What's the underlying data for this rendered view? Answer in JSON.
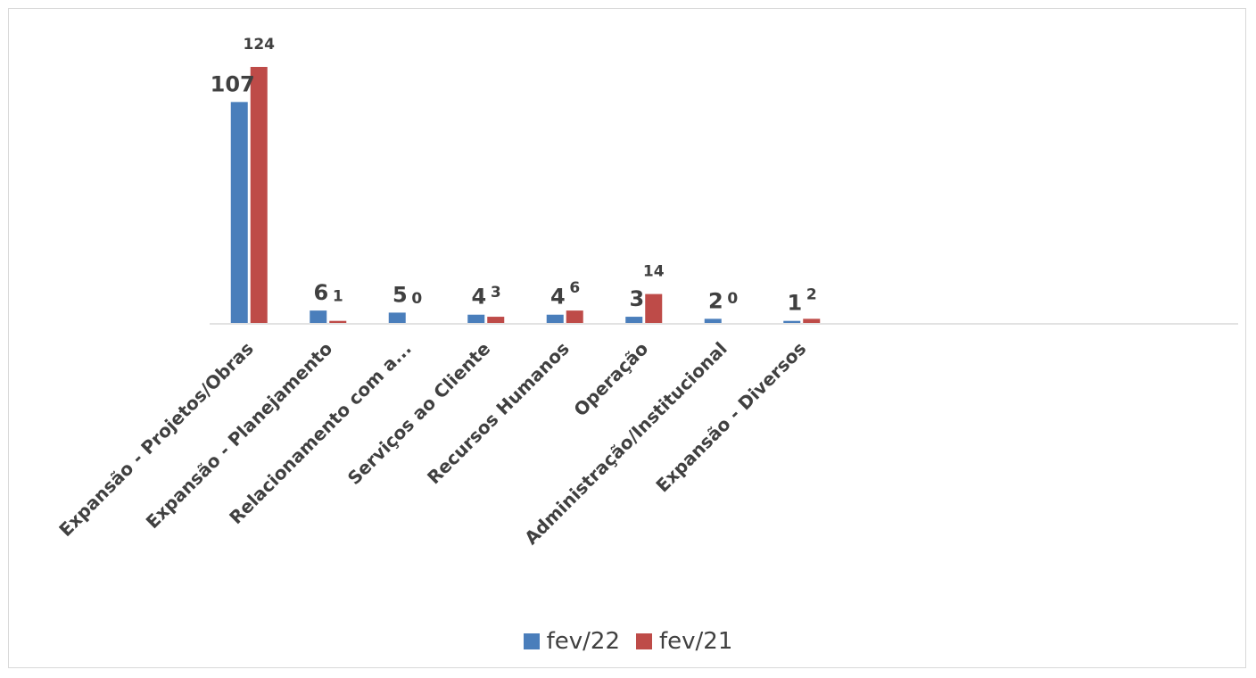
{
  "chart_data": {
    "type": "bar",
    "title": "",
    "xlabel": "",
    "ylabel": "",
    "ylim": [
      0,
      130
    ],
    "grid": false,
    "legend_position": "bottom",
    "categories": [
      "Expansão - Projetos/Obras",
      "Expansão - Planejamento",
      "Relacionamento com a...",
      "Serviços ao Cliente",
      "Recursos Humanos",
      "Operação",
      "Administração/Institucional",
      "Expansão - Diversos"
    ],
    "series": [
      {
        "name": "fev/22",
        "color": "#4a7ebb",
        "values": [
          107,
          6,
          5,
          4,
          4,
          3,
          2,
          1
        ]
      },
      {
        "name": "fev/21",
        "color": "#be4b48",
        "values": [
          124,
          1,
          0,
          3,
          6,
          14,
          0,
          2
        ]
      }
    ]
  }
}
